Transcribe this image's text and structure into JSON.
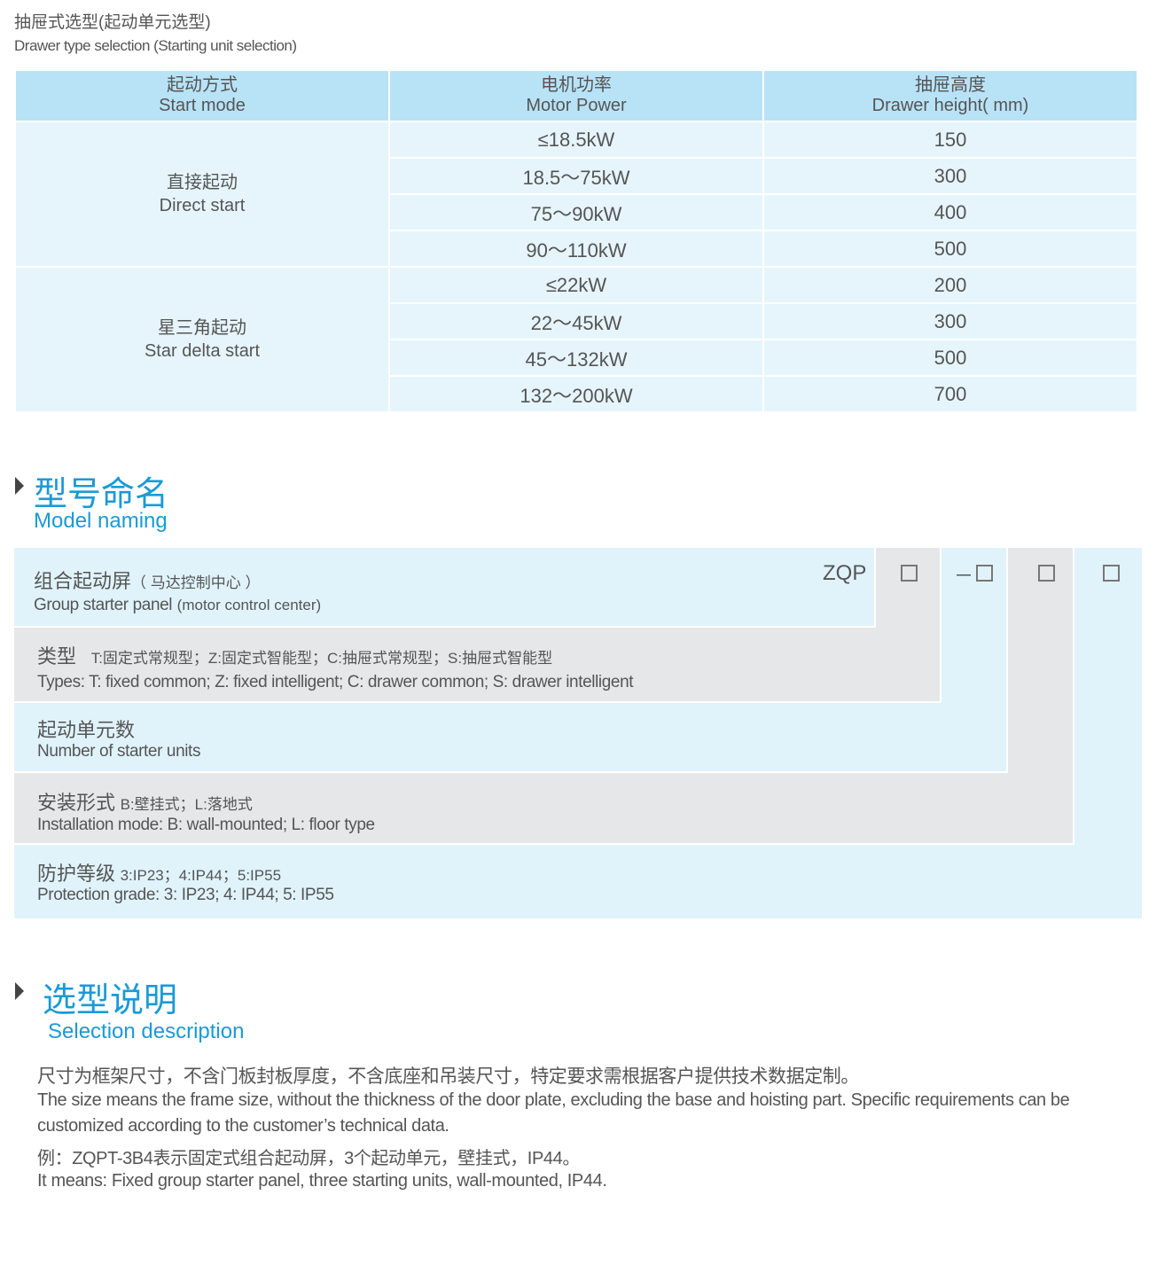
{
  "header": {
    "title_zh": "抽屉式选型(起动单元选型)",
    "title_en": "Drawer type selection (Starting unit selection)"
  },
  "table": {
    "columns": [
      {
        "zh": "起动方式",
        "en": "Start mode"
      },
      {
        "zh": "电机功率",
        "en": "Motor Power"
      },
      {
        "zh": "抽屉高度",
        "en": "Drawer height( mm)"
      }
    ],
    "groups": [
      {
        "zh": "直接起动",
        "en": "Direct start",
        "rows": [
          [
            "≤18.5kW",
            "150"
          ],
          [
            "18.5～75kW",
            "300"
          ],
          [
            "75～90kW",
            "400"
          ],
          [
            "90～110kW",
            "500"
          ]
        ]
      },
      {
        "zh": "星三角起动",
        "en": "Star delta start",
        "rows": [
          [
            "≤22kW",
            "200"
          ],
          [
            "22～45kW",
            "300"
          ],
          [
            "45～132kW",
            "500"
          ],
          [
            "132～200kW",
            "700"
          ]
        ]
      }
    ]
  },
  "model_naming": {
    "title_zh": "型号命名",
    "title_en": "Model naming",
    "code": "ZQP",
    "dash": "－",
    "rows": [
      {
        "zh": "组合起动屏",
        "zh_note": "（ 马达控制中心 ）",
        "en": "Group starter panel",
        "en_note": "(motor control center)"
      },
      {
        "zh": "类型",
        "zh_note": "T:固定式常规型；Z:固定式智能型；C:抽屉式常规型；S:抽屉式智能型",
        "en": "Types: T: fixed common; Z: fixed intelligent; C: drawer common; S: drawer intelligent"
      },
      {
        "zh": "起动单元数",
        "en": "Number  of  starter units"
      },
      {
        "zh": "安装形式",
        "zh_note": "B:壁挂式；L:落地式",
        "en": "Installation mode: B: wall-mounted; L: floor type"
      },
      {
        "zh": "防护等级",
        "zh_note": "3:IP23；4:IP44；5:IP55",
        "en": "Protection grade:  3: IP23; 4: IP44; 5: IP55"
      }
    ]
  },
  "selection": {
    "title_zh": "选型说明",
    "title_en": "Selection description",
    "lines": [
      "尺寸为框架尺寸，不含门板封板厚度，不含底座和吊装尺寸，特定要求需根据客户提供技术数据定制。",
      "The size means the frame size, without the thickness of the door plate, excluding the base and hoisting part. Specific requirements can be",
      "customized according to the customer’s technical data.",
      "例：ZQPT-3B4表示固定式组合起动屏，3个起动单元，壁挂式，IP44。",
      "It means: Fixed group starter panel, three starting units, wall-mounted, IP44."
    ]
  },
  "colors": {
    "accent": "#1a9ad6",
    "header_bg": "#b8e3f7",
    "cell_bg": "#e6f5fc",
    "light_blue": "#e0f3fb",
    "grey": "#e6e7e8"
  }
}
